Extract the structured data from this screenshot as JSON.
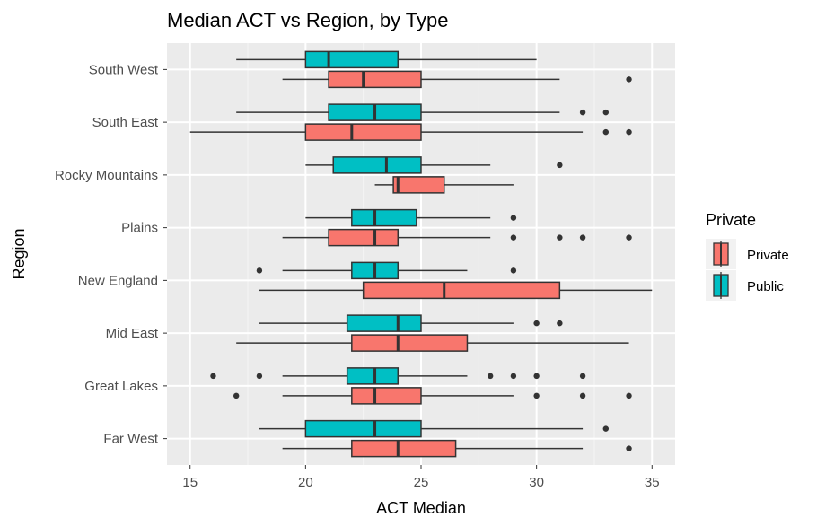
{
  "chart_data": {
    "type": "boxplot",
    "orientation": "horizontal",
    "title": "Median ACT vs Region, by Type",
    "xlabel": "ACT Median",
    "ylabel": "Region",
    "xlim": [
      14,
      36
    ],
    "x_ticks": [
      15,
      20,
      25,
      30,
      35
    ],
    "grid": true,
    "legend": {
      "title": "Private",
      "position": "right",
      "entries": [
        {
          "label": "Private",
          "color": "#F8766D"
        },
        {
          "label": "Public",
          "color": "#00BFC4"
        }
      ]
    },
    "categories": [
      "South West",
      "South East",
      "Rocky Mountains",
      "Plains",
      "New England",
      "Mid East",
      "Great Lakes",
      "Far West"
    ],
    "series": [
      {
        "name": "Private",
        "color": "#F8766D",
        "boxes": [
          {
            "category": "South West",
            "whisker_low": 19,
            "q1": 21,
            "median": 22.5,
            "q3": 25,
            "whisker_high": 31,
            "outliers": [
              34
            ]
          },
          {
            "category": "South East",
            "whisker_low": 15,
            "q1": 20,
            "median": 22,
            "q3": 25,
            "whisker_high": 32,
            "outliers": [
              33,
              34
            ]
          },
          {
            "category": "Rocky Mountains",
            "whisker_low": 23,
            "q1": 23.8,
            "median": 24,
            "q3": 26,
            "whisker_high": 29,
            "outliers": []
          },
          {
            "category": "Plains",
            "whisker_low": 19,
            "q1": 21,
            "median": 23,
            "q3": 24,
            "whisker_high": 28,
            "outliers": [
              29,
              31,
              32,
              34
            ]
          },
          {
            "category": "New England",
            "whisker_low": 18,
            "q1": 22.5,
            "median": 26,
            "q3": 31,
            "whisker_high": 35,
            "outliers": []
          },
          {
            "category": "Mid East",
            "whisker_low": 17,
            "q1": 22,
            "median": 24,
            "q3": 27,
            "whisker_high": 34,
            "outliers": []
          },
          {
            "category": "Great Lakes",
            "whisker_low": 19,
            "q1": 22,
            "median": 23,
            "q3": 25,
            "whisker_high": 29,
            "outliers": [
              17,
              30,
              32,
              34
            ]
          },
          {
            "category": "Far West",
            "whisker_low": 19,
            "q1": 22,
            "median": 24,
            "q3": 26.5,
            "whisker_high": 32,
            "outliers": [
              34
            ]
          }
        ]
      },
      {
        "name": "Public",
        "color": "#00BFC4",
        "boxes": [
          {
            "category": "South West",
            "whisker_low": 17,
            "q1": 20,
            "median": 21,
            "q3": 24,
            "whisker_high": 30,
            "outliers": []
          },
          {
            "category": "South East",
            "whisker_low": 17,
            "q1": 21,
            "median": 23,
            "q3": 25,
            "whisker_high": 31,
            "outliers": [
              32,
              33
            ]
          },
          {
            "category": "Rocky Mountains",
            "whisker_low": 20,
            "q1": 21.2,
            "median": 23.5,
            "q3": 25,
            "whisker_high": 28,
            "outliers": [
              31
            ]
          },
          {
            "category": "Plains",
            "whisker_low": 20,
            "q1": 22,
            "median": 23,
            "q3": 24.8,
            "whisker_high": 28,
            "outliers": [
              29
            ]
          },
          {
            "category": "New England",
            "whisker_low": 19,
            "q1": 22,
            "median": 23,
            "q3": 24,
            "whisker_high": 27,
            "outliers": [
              18,
              29
            ]
          },
          {
            "category": "Mid East",
            "whisker_low": 18,
            "q1": 21.8,
            "median": 24,
            "q3": 25,
            "whisker_high": 29,
            "outliers": [
              30,
              31
            ]
          },
          {
            "category": "Great Lakes",
            "whisker_low": 19,
            "q1": 21.8,
            "median": 23,
            "q3": 24,
            "whisker_high": 27,
            "outliers": [
              16,
              18,
              28,
              29,
              30,
              32
            ]
          },
          {
            "category": "Far West",
            "whisker_low": 18,
            "q1": 20,
            "median": 23,
            "q3": 25,
            "whisker_high": 32,
            "outliers": [
              33
            ]
          }
        ]
      }
    ]
  }
}
